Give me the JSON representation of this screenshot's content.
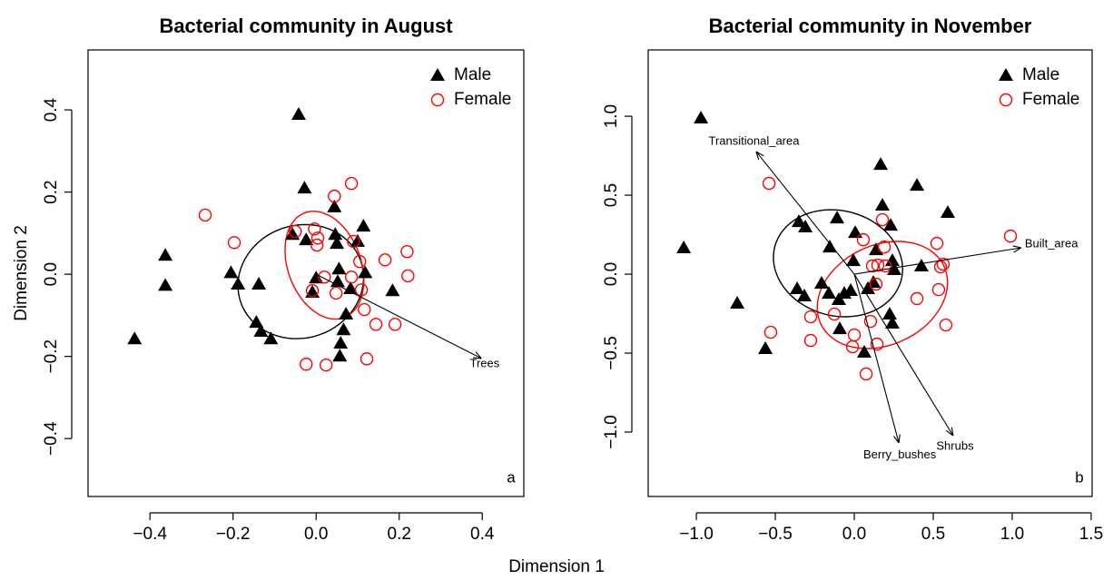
{
  "chart_data": [
    {
      "type": "scatter",
      "title": "Bacterial community in August",
      "panel_label": "a",
      "xlabel": "Dimension 1",
      "ylabel": "Dimension 2",
      "xlim": [
        -0.549,
        0.5
      ],
      "ylim": [
        -0.541,
        0.546
      ],
      "xticks": [
        {
          "value": -0.4,
          "label": "−0.4"
        },
        {
          "value": -0.2,
          "label": "−0.2"
        },
        {
          "value": 0,
          "label": "0.0"
        },
        {
          "value": 0.2,
          "label": "0.2"
        },
        {
          "value": 0.4,
          "label": "0.4"
        }
      ],
      "yticks": [
        {
          "value": -0.4,
          "label": "−0.4"
        },
        {
          "value": -0.2,
          "label": "−0.2"
        },
        {
          "value": 0,
          "label": "0.0"
        },
        {
          "value": 0.2,
          "label": "0.2"
        },
        {
          "value": 0.4,
          "label": "0.4"
        }
      ],
      "legend": "top-right",
      "series": [
        {
          "name": "Male",
          "color": "#000000",
          "marker": "triangle",
          "x": [
            -0.437,
            -0.363,
            -0.363,
            -0.042,
            -0.028,
            -0.205,
            -0.188,
            -0.138,
            -0.144,
            -0.133,
            -0.109,
            -0.057,
            -0.024,
            -0.009,
            0.0,
            0.044,
            0.046,
            0.05,
            0.055,
            0.052,
            0.072,
            0.066,
            0.059,
            0.057,
            0.083,
            0.114,
            0.184,
            0.1,
            0.118
          ],
          "y": [
            -0.157,
            0.046,
            -0.027,
            0.389,
            0.21,
            0.004,
            -0.024,
            -0.024,
            -0.117,
            -0.139,
            -0.157,
            0.097,
            0.084,
            -0.044,
            -0.009,
            0.164,
            0.097,
            0.075,
            0.013,
            -0.018,
            -0.097,
            -0.135,
            -0.168,
            -0.199,
            -0.035,
            0.117,
            -0.04,
            0.08,
            0.004
          ]
        },
        {
          "name": "Female",
          "color": "#ff0000",
          "marker": "circle",
          "x": [
            -0.267,
            -0.197,
            -0.05,
            -0.004,
            0.004,
            0.002,
            -0.009,
            0.02,
            0.044,
            0.085,
            0.048,
            0.09,
            0.085,
            0.109,
            0.116,
            0.105,
            0.166,
            0.219,
            0.221,
            0.19,
            0.144,
            -0.024,
            0.024,
            0.122
          ],
          "y": [
            0.144,
            0.077,
            0.104,
            0.11,
            0.088,
            0.071,
            -0.04,
            -0.007,
            0.19,
            0.221,
            -0.046,
            0.08,
            -0.007,
            -0.038,
            -0.086,
            0.031,
            0.035,
            0.055,
            -0.004,
            -0.122,
            -0.122,
            -0.219,
            -0.221,
            -0.206
          ]
        }
      ],
      "ellipses": [
        {
          "color": "#000000",
          "center": [
            -0.037,
            -0.018
          ],
          "radii": [
            0.153,
            0.137
          ],
          "angle": 20
        },
        {
          "color": "#ff0000",
          "center": [
            0.02,
            0.022
          ],
          "radii": [
            0.136,
            0.088
          ],
          "angle": -70
        }
      ],
      "vectors": [
        {
          "label": "Trees",
          "x": 0.398,
          "y": -0.205
        }
      ]
    },
    {
      "type": "scatter",
      "title": "Bacterial community in November",
      "panel_label": "b",
      "xlim": [
        -1.305,
        1.506
      ],
      "ylim": [
        -1.408,
        1.42
      ],
      "xticks": [
        {
          "value": -1,
          "label": "−1.0"
        },
        {
          "value": -0.5,
          "label": "−0.5"
        },
        {
          "value": 0,
          "label": "0.0"
        },
        {
          "value": 0.5,
          "label": "0.5"
        },
        {
          "value": 1,
          "label": "1.0"
        },
        {
          "value": 1.5,
          "label": "1.5"
        }
      ],
      "yticks": [
        {
          "value": -1,
          "label": "−1.0"
        },
        {
          "value": -0.5,
          "label": "−0.5"
        },
        {
          "value": 0,
          "label": "0.0"
        },
        {
          "value": 0.5,
          "label": "0.5"
        },
        {
          "value": 1,
          "label": "1.0"
        }
      ],
      "legend": "top-right",
      "series": [
        {
          "name": "Male",
          "color": "#000000",
          "marker": "triangle",
          "x": [
            -1.08,
            -0.971,
            -0.741,
            -0.563,
            -0.351,
            -0.31,
            -0.362,
            -0.316,
            -0.109,
            -0.155,
            0.006,
            -0.006,
            -0.207,
            -0.161,
            -0.063,
            -0.098,
            -0.092,
            0.063,
            -0.023,
            0.121,
            0.138,
            0.167,
            0.178,
            0.23,
            0.241,
            0.253,
            0.224,
            0.241,
            0.397,
            0.425,
            0.592,
            0.086
          ],
          "y": [
            0.167,
            0.989,
            -0.184,
            -0.471,
            0.333,
            0.299,
            -0.092,
            -0.138,
            0.356,
            0.172,
            0.264,
            0.086,
            -0.057,
            -0.121,
            -0.121,
            -0.161,
            -0.345,
            -0.494,
            -0.103,
            -0.052,
            0.155,
            0.695,
            0.437,
            0.31,
            0.086,
            0.029,
            -0.253,
            -0.31,
            0.563,
            0.052,
            0.391,
            -0.092
          ]
        },
        {
          "name": "Female",
          "color": "#ff0000",
          "marker": "circle",
          "x": [
            -0.54,
            -0.529,
            -0.276,
            -0.276,
            -0.011,
            0.0,
            -0.126,
            0.057,
            0.103,
            0.075,
            0.144,
            0.149,
            0.138,
            0.178,
            0.19,
            0.195,
            0.115,
            0.397,
            0.523,
            0.534,
            0.546,
            0.58,
            0.989,
            0.563
          ],
          "y": [
            0.575,
            -0.368,
            -0.27,
            -0.42,
            -0.46,
            -0.385,
            -0.253,
            0.218,
            -0.299,
            -0.632,
            -0.443,
            0.057,
            -0.063,
            0.345,
            0.172,
            0.052,
            0.052,
            -0.155,
            0.195,
            -0.098,
            0.046,
            -0.322,
            0.241,
            0.063
          ]
        }
      ],
      "ellipses": [
        {
          "color": "#000000",
          "center": [
            -0.103,
            0.069
          ],
          "radii": [
            0.414,
            0.333
          ],
          "angle": -15
        },
        {
          "color": "#ff0000",
          "center": [
            0.178,
            -0.132
          ],
          "radii": [
            0.431,
            0.316
          ],
          "angle": 25
        }
      ],
      "vectors": [
        {
          "label": "Transitional_area",
          "x": -0.621,
          "y": 0.776
        },
        {
          "label": "Built_area",
          "x": 1.057,
          "y": 0.167
        },
        {
          "label": "Berry_bushes",
          "x": 0.282,
          "y": -1.069
        },
        {
          "label": "Shrubs",
          "x": 0.626,
          "y": -1.023
        }
      ]
    }
  ]
}
